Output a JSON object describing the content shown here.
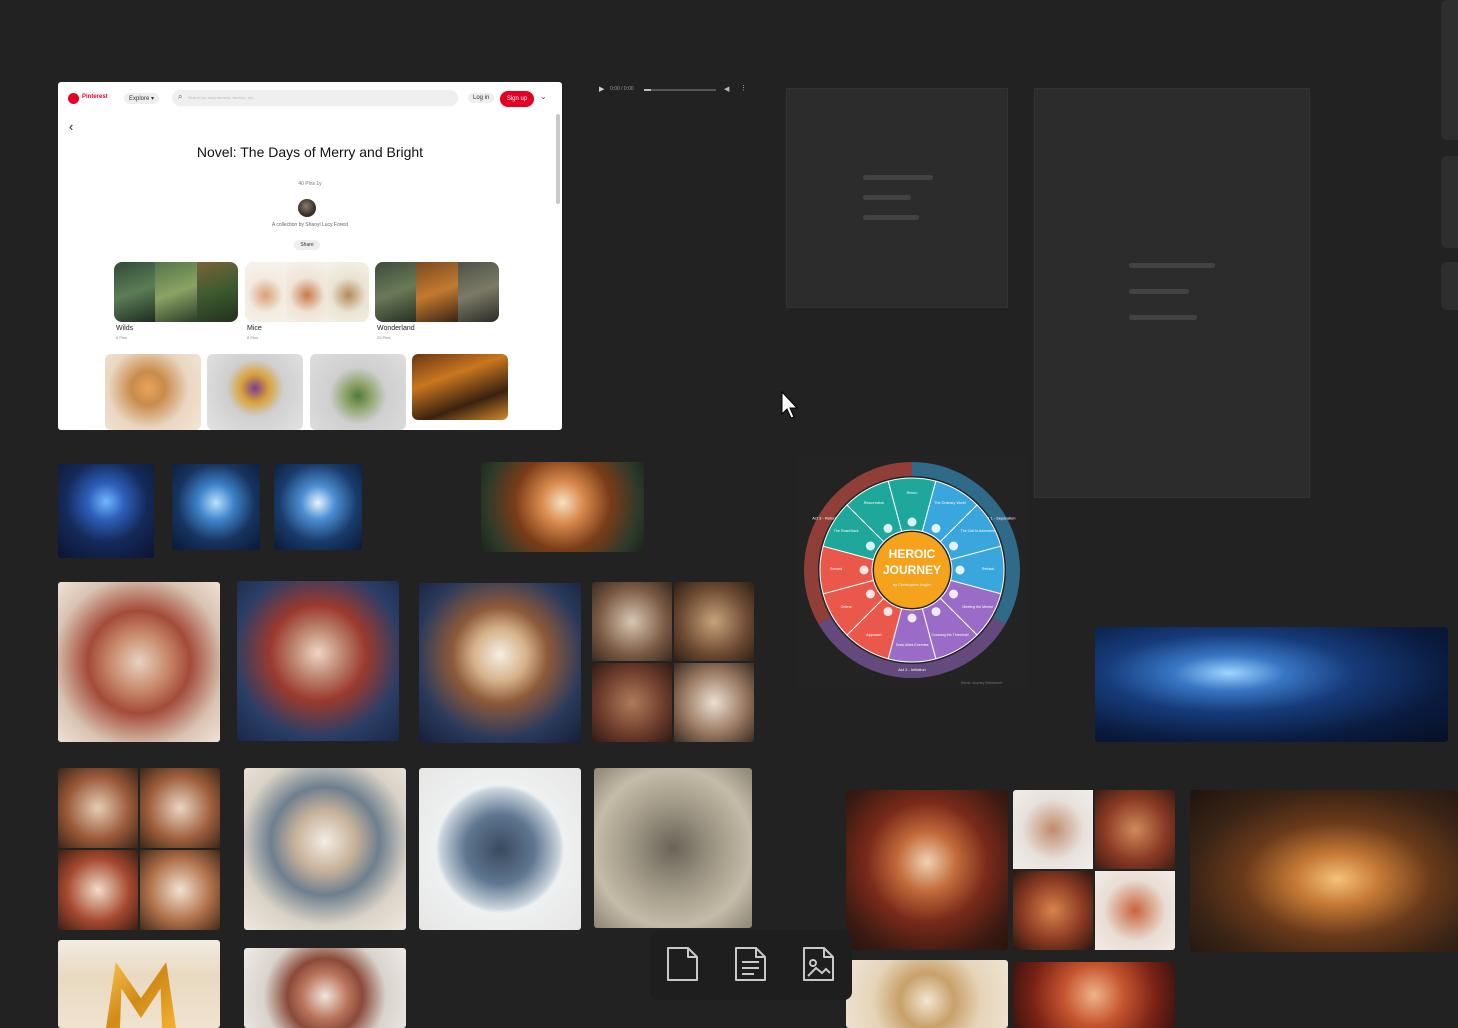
{
  "pinterest": {
    "brand": "Pinterest",
    "explore_label": "Explore ▾",
    "search_placeholder": "Search for easy dinners, fashion, etc.",
    "login_label": "Log in",
    "signup_label": "Sign up",
    "board_title": "Novel: The Days of Merry and Bright",
    "board_subtitle": "40 Pins 1y",
    "collab_by": "A collection by Shaoyi Lucy Forest",
    "share_label": "Share",
    "boards": [
      {
        "label": "Wilds",
        "count": "6 Pins"
      },
      {
        "label": "Mice",
        "count": "8 Pins"
      },
      {
        "label": "Wonderland",
        "count": "20 Pins"
      }
    ]
  },
  "media_player": {
    "time": "0:00 / 0:00",
    "progress_fraction": 0.1
  },
  "heroic_wheel": {
    "center_line1": "HEROIC",
    "center_line2": "JOURNEY",
    "center_line3": "by Christopher Vogler",
    "segments": [
      "Return",
      "The Ordinary World",
      "The Call to Adventure",
      "Refusal",
      "Meeting the Mentor",
      "Crossing the Threshold",
      "Tests Allies Enemies",
      "Approach",
      "Ordeal",
      "Reward",
      "The Road Back",
      "Resurrection"
    ],
    "outer_labels": [
      "Act 1 - Separation",
      "Act 2 - Initiation",
      "Act 3 - Return"
    ],
    "footer": "Heroic Journey Worksheet"
  },
  "toolbar": {
    "items": [
      {
        "name": "blank-document-icon"
      },
      {
        "name": "text-document-icon"
      },
      {
        "name": "image-document-icon"
      }
    ]
  },
  "colors": {
    "background": "#222222",
    "pinterest_red": "#e60023",
    "wheel_teal": "#1ea89b",
    "wheel_blue": "#3aa6de",
    "wheel_purple": "#9a6bc7",
    "wheel_red": "#e9584a",
    "wheel_center": "#f5a21c"
  }
}
